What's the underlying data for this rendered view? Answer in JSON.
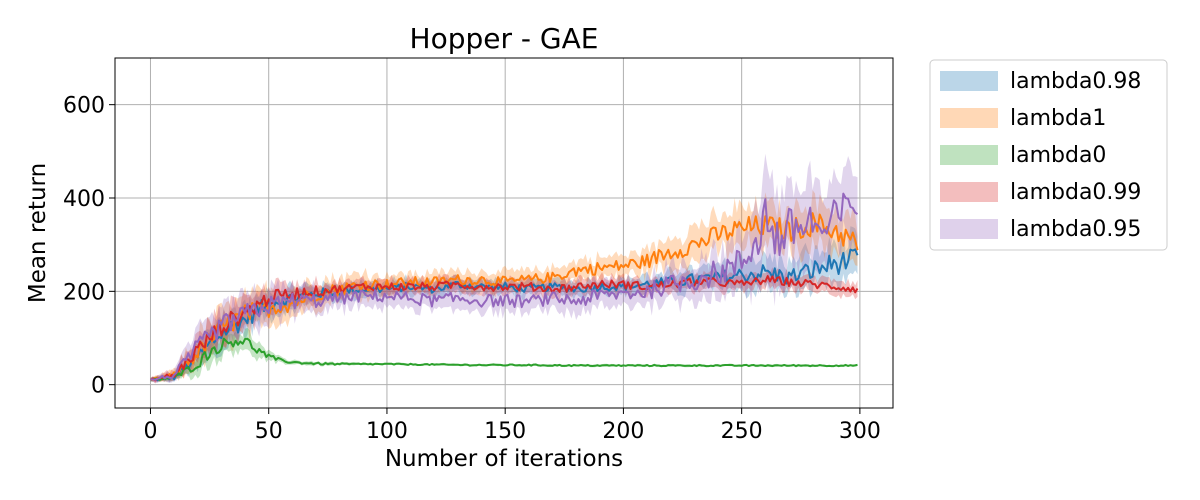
{
  "chart_data": {
    "type": "line",
    "title": "Hopper - GAE",
    "xlabel": "Number of iterations",
    "ylabel": "Mean return",
    "xlim": [
      -15,
      314
    ],
    "ylim": [
      -50,
      700
    ],
    "xticks": [
      0,
      50,
      100,
      150,
      200,
      250,
      300
    ],
    "yticks": [
      0,
      200,
      400,
      600
    ],
    "grid": true,
    "legend_position": "outside-right",
    "series": [
      {
        "name": "lambda0.98",
        "color": "#1f77b4",
        "x": [
          0,
          10,
          20,
          30,
          40,
          50,
          60,
          70,
          80,
          90,
          100,
          110,
          120,
          130,
          140,
          150,
          160,
          170,
          180,
          190,
          200,
          210,
          220,
          230,
          240,
          250,
          260,
          270,
          280,
          290,
          299
        ],
        "y": [
          10,
          15,
          60,
          110,
          140,
          175,
          185,
          195,
          200,
          205,
          205,
          210,
          205,
          215,
          210,
          210,
          205,
          210,
          205,
          210,
          210,
          215,
          220,
          225,
          230,
          235,
          240,
          230,
          245,
          260,
          270
        ],
        "band": [
          5,
          10,
          35,
          45,
          45,
          35,
          30,
          25,
          20,
          20,
          20,
          20,
          20,
          20,
          20,
          20,
          20,
          20,
          20,
          20,
          20,
          25,
          25,
          30,
          30,
          40,
          45,
          40,
          50,
          55,
          50
        ]
      },
      {
        "name": "lambda1",
        "color": "#ff7f0e",
        "x": [
          0,
          10,
          20,
          30,
          40,
          50,
          60,
          70,
          80,
          90,
          100,
          110,
          120,
          130,
          140,
          150,
          160,
          170,
          180,
          190,
          200,
          210,
          220,
          230,
          240,
          250,
          260,
          270,
          280,
          290,
          299
        ],
        "y": [
          10,
          20,
          70,
          120,
          150,
          165,
          175,
          195,
          205,
          215,
          215,
          220,
          220,
          225,
          225,
          220,
          225,
          230,
          245,
          250,
          255,
          265,
          285,
          300,
          320,
          335,
          340,
          330,
          345,
          330,
          300
        ],
        "band": [
          5,
          15,
          45,
          50,
          50,
          45,
          40,
          35,
          30,
          30,
          25,
          25,
          25,
          25,
          25,
          25,
          25,
          25,
          30,
          30,
          30,
          35,
          40,
          45,
          50,
          55,
          55,
          55,
          60,
          60,
          55
        ]
      },
      {
        "name": "lambda0",
        "color": "#2ca02c",
        "x": [
          0,
          10,
          20,
          25,
          30,
          35,
          40,
          45,
          50,
          55,
          60,
          70,
          80,
          100,
          120,
          140,
          160,
          180,
          200,
          220,
          240,
          260,
          280,
          299
        ],
        "y": [
          10,
          15,
          45,
          70,
          85,
          95,
          95,
          75,
          60,
          52,
          48,
          45,
          44,
          44,
          43,
          42,
          42,
          41,
          41,
          41,
          41,
          41,
          41,
          41
        ],
        "band": [
          5,
          8,
          25,
          30,
          30,
          30,
          25,
          20,
          12,
          8,
          6,
          5,
          4,
          3,
          3,
          3,
          3,
          3,
          3,
          3,
          3,
          3,
          3,
          3
        ]
      },
      {
        "name": "lambda0.99",
        "color": "#d62728",
        "x": [
          0,
          10,
          20,
          30,
          40,
          50,
          60,
          70,
          80,
          90,
          100,
          110,
          120,
          130,
          140,
          150,
          160,
          170,
          180,
          190,
          200,
          210,
          220,
          230,
          240,
          250,
          260,
          270,
          280,
          290,
          299
        ],
        "y": [
          10,
          20,
          75,
          125,
          155,
          185,
          195,
          200,
          205,
          210,
          210,
          210,
          210,
          215,
          210,
          210,
          210,
          205,
          210,
          215,
          215,
          210,
          215,
          220,
          220,
          215,
          225,
          220,
          215,
          210,
          205
        ],
        "band": [
          5,
          15,
          40,
          45,
          45,
          35,
          30,
          25,
          20,
          20,
          20,
          20,
          20,
          20,
          20,
          20,
          20,
          20,
          20,
          20,
          20,
          20,
          20,
          20,
          20,
          20,
          20,
          20,
          20,
          20,
          20
        ]
      },
      {
        "name": "lambda0.95",
        "color": "#9467bd",
        "x": [
          0,
          10,
          20,
          30,
          40,
          50,
          60,
          70,
          80,
          90,
          100,
          110,
          120,
          130,
          140,
          150,
          160,
          170,
          180,
          190,
          200,
          210,
          220,
          230,
          240,
          250,
          255,
          260,
          265,
          270,
          280,
          285,
          290,
          299
        ],
        "y": [
          10,
          20,
          80,
          125,
          150,
          170,
          180,
          180,
          185,
          190,
          190,
          185,
          180,
          185,
          180,
          180,
          178,
          185,
          180,
          190,
          195,
          200,
          215,
          225,
          240,
          260,
          300,
          360,
          310,
          330,
          350,
          320,
          360,
          390
        ],
        "band": [
          5,
          15,
          45,
          50,
          50,
          45,
          40,
          35,
          30,
          30,
          30,
          30,
          30,
          30,
          30,
          30,
          30,
          30,
          35,
          35,
          35,
          40,
          45,
          55,
          65,
          80,
          100,
          150,
          120,
          110,
          110,
          100,
          100,
          95
        ]
      }
    ]
  }
}
